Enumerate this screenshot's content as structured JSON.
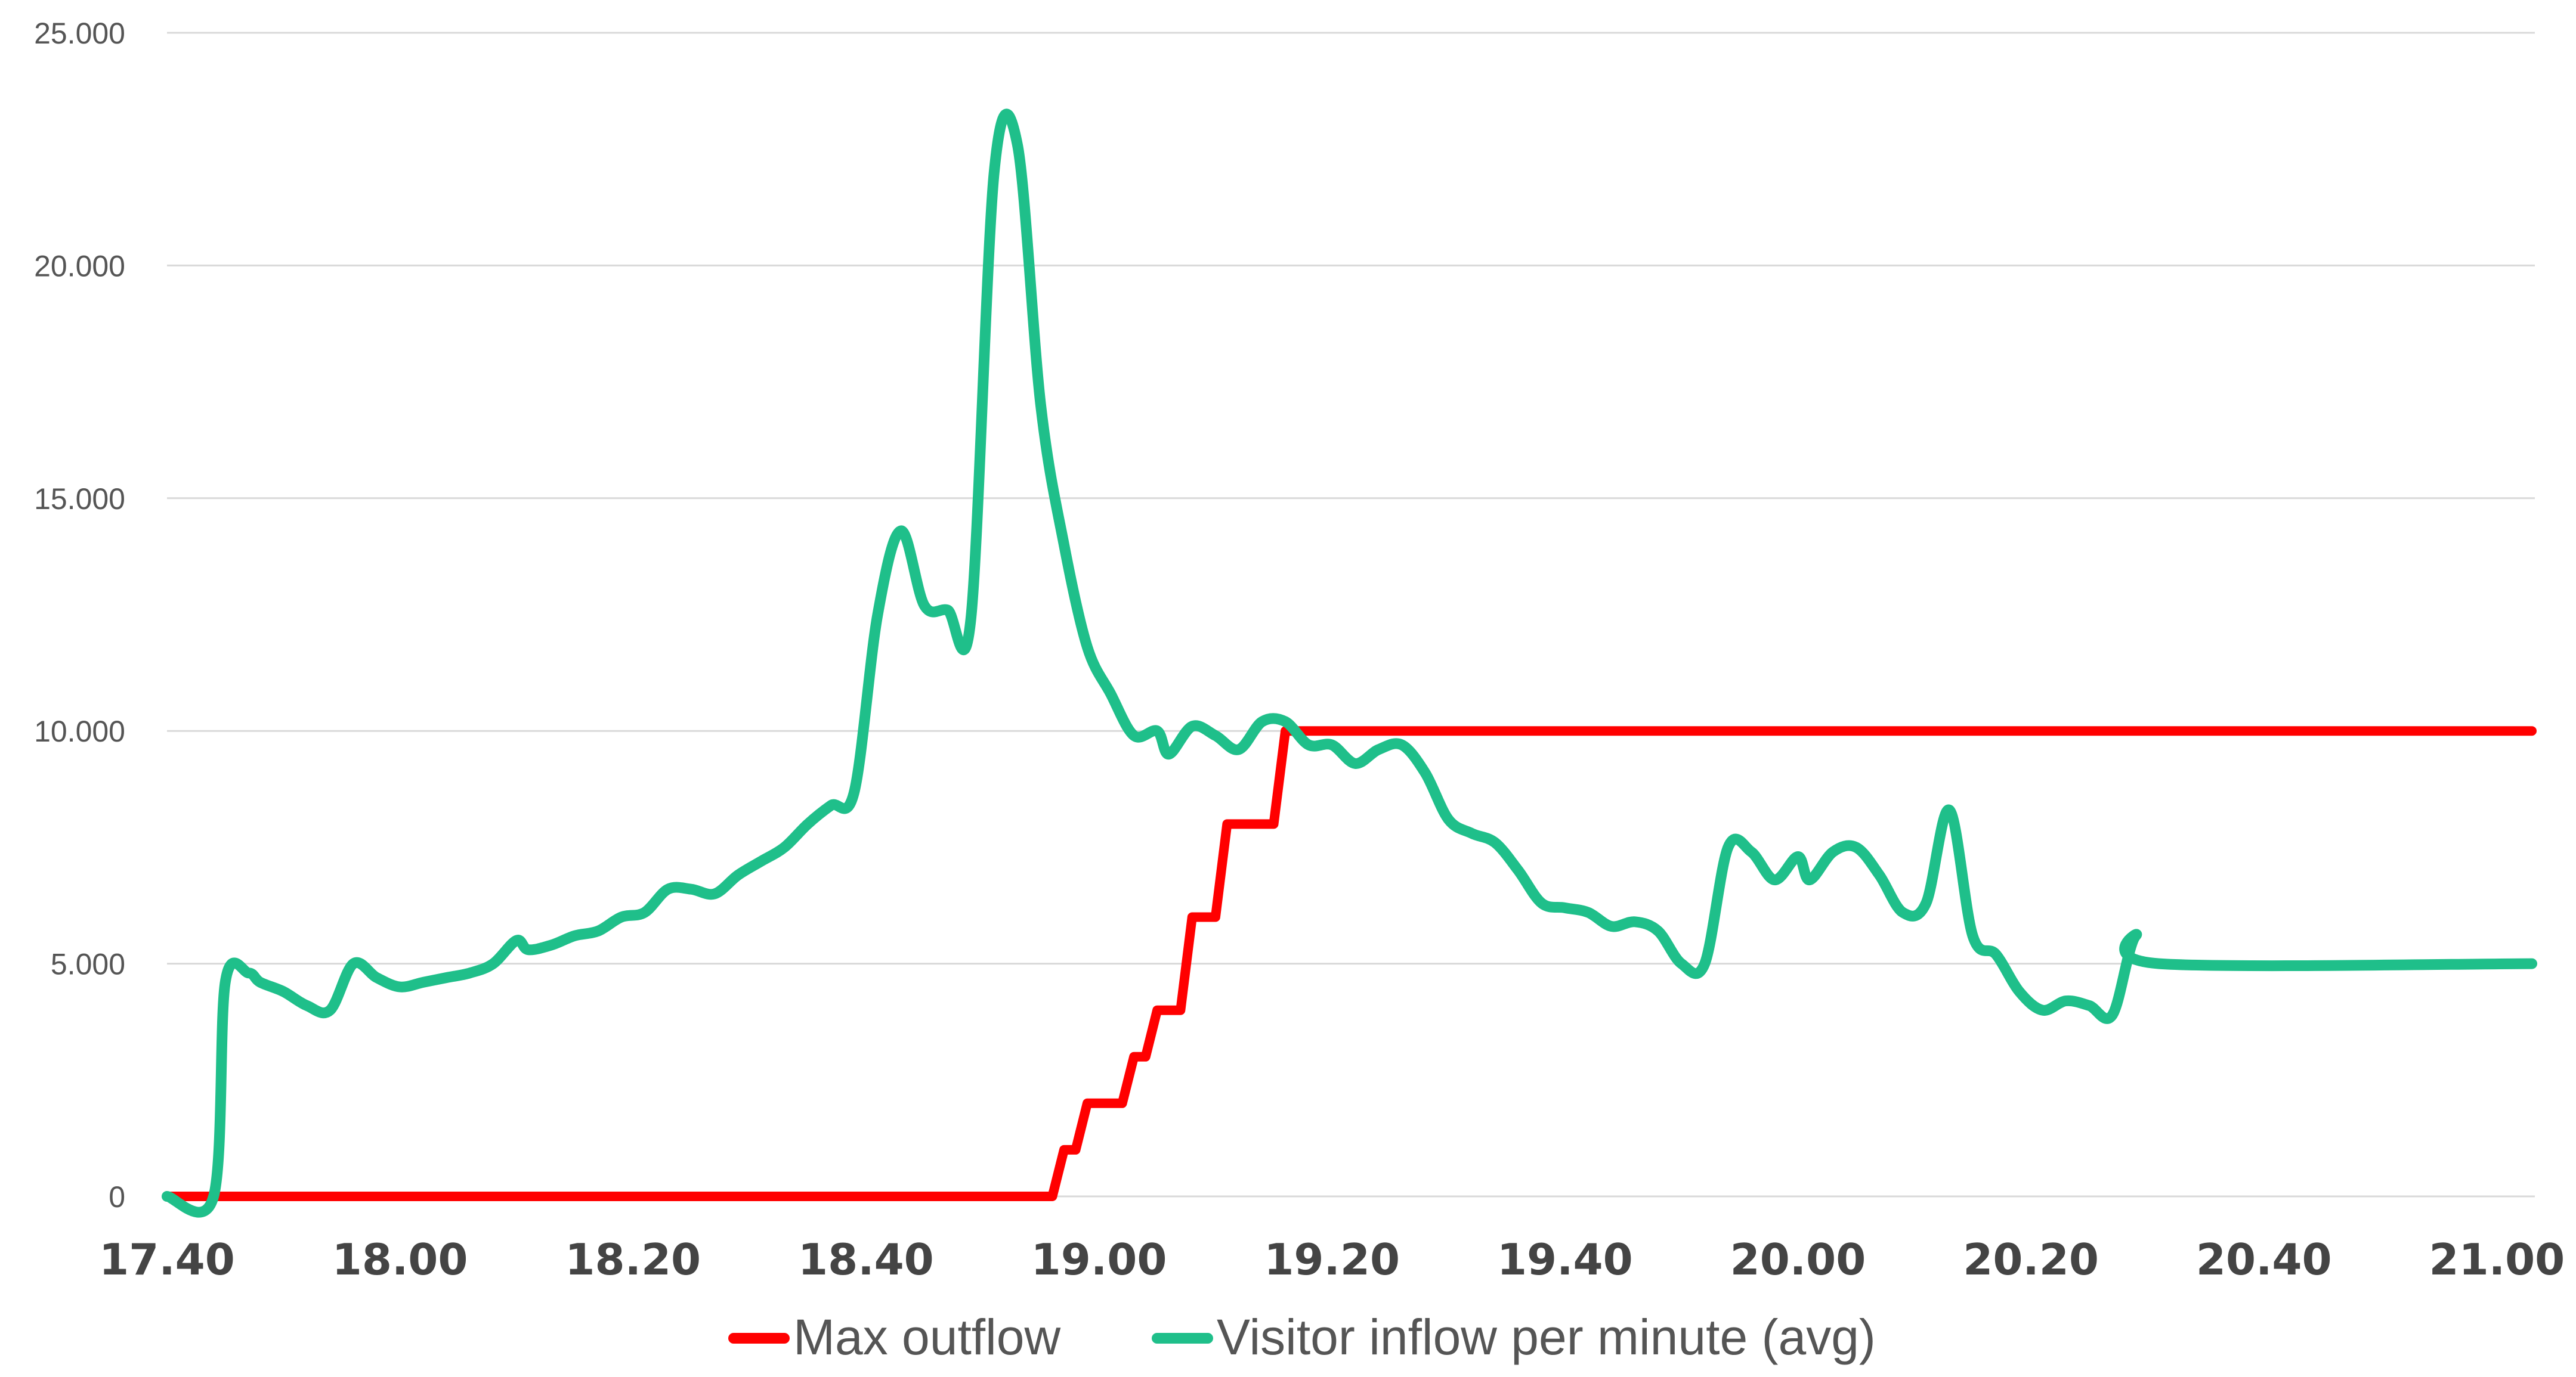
{
  "chart_data": {
    "type": "line",
    "title": "",
    "xlabel": "",
    "ylabel": "",
    "x_ticks": [
      "17.40",
      "18.00",
      "18.20",
      "18.40",
      "19.00",
      "19.20",
      "19.40",
      "20.00",
      "20.20",
      "20.40",
      "21.00"
    ],
    "y_ticks": [
      "0",
      "5.000",
      "10.000",
      "15.000",
      "20.000",
      "25.000"
    ],
    "ylim": [
      0,
      25000
    ],
    "xlim": [
      "17:40",
      "21:03"
    ],
    "grid": true,
    "legend_position": "bottom",
    "series": [
      {
        "name": "Max outflow",
        "color": "#ff0000",
        "points": [
          [
            "17:40",
            0
          ],
          [
            "18:45",
            0
          ],
          [
            "18:56",
            0
          ],
          [
            "18:57",
            1000
          ],
          [
            "18:58",
            1000
          ],
          [
            "18:59",
            2000
          ],
          [
            "19:02",
            2000
          ],
          [
            "19:03",
            3000
          ],
          [
            "19:04",
            3000
          ],
          [
            "19:05",
            4000
          ],
          [
            "19:07",
            4000
          ],
          [
            "19:08",
            6000
          ],
          [
            "19:10",
            6000
          ],
          [
            "19:11",
            8000
          ],
          [
            "19:15",
            8000
          ],
          [
            "19:16",
            10000
          ],
          [
            "21:03",
            10000
          ]
        ]
      },
      {
        "name": "Visitor inflow per minute (avg)",
        "color": "#1fbf8a",
        "points": [
          [
            "17:40",
            0
          ],
          [
            "17:44",
            0
          ],
          [
            "17:45",
            4600
          ],
          [
            "17:47",
            4800
          ],
          [
            "17:48",
            4600
          ],
          [
            "17:50",
            4400
          ],
          [
            "17:52",
            4100
          ],
          [
            "17:54",
            4000
          ],
          [
            "17:56",
            5000
          ],
          [
            "17:58",
            4700
          ],
          [
            "18:00",
            4500
          ],
          [
            "18:02",
            4600
          ],
          [
            "18:04",
            4700
          ],
          [
            "18:06",
            4800
          ],
          [
            "18:08",
            5000
          ],
          [
            "18:10",
            5500
          ],
          [
            "18:11",
            5300
          ],
          [
            "18:13",
            5400
          ],
          [
            "18:15",
            5600
          ],
          [
            "18:17",
            5700
          ],
          [
            "18:19",
            6000
          ],
          [
            "18:21",
            6100
          ],
          [
            "18:23",
            6600
          ],
          [
            "18:25",
            6600
          ],
          [
            "18:27",
            6500
          ],
          [
            "18:29",
            6900
          ],
          [
            "18:31",
            7200
          ],
          [
            "18:33",
            7500
          ],
          [
            "18:35",
            8000
          ],
          [
            "18:37",
            8400
          ],
          [
            "18:39",
            8700
          ],
          [
            "18:41",
            12500
          ],
          [
            "18:43",
            14300
          ],
          [
            "18:45",
            12700
          ],
          [
            "18:47",
            12600
          ],
          [
            "18:49",
            12400
          ],
          [
            "18:51",
            22000
          ],
          [
            "18:53",
            22600
          ],
          [
            "18:55",
            17000
          ],
          [
            "18:57",
            14000
          ],
          [
            "18:59",
            11800
          ],
          [
            "19:01",
            10800
          ],
          [
            "19:03",
            9900
          ],
          [
            "19:05",
            10000
          ],
          [
            "19:06",
            9500
          ],
          [
            "19:08",
            10100
          ],
          [
            "19:10",
            9900
          ],
          [
            "19:12",
            9600
          ],
          [
            "19:14",
            10200
          ],
          [
            "19:16",
            10200
          ],
          [
            "19:18",
            9700
          ],
          [
            "19:20",
            9700
          ],
          [
            "19:22",
            9300
          ],
          [
            "19:24",
            9600
          ],
          [
            "19:26",
            9700
          ],
          [
            "19:28",
            9100
          ],
          [
            "19:30",
            8100
          ],
          [
            "19:32",
            7800
          ],
          [
            "19:34",
            7600
          ],
          [
            "19:36",
            7000
          ],
          [
            "19:38",
            6300
          ],
          [
            "19:40",
            6200
          ],
          [
            "19:42",
            6100
          ],
          [
            "19:44",
            5800
          ],
          [
            "19:46",
            5900
          ],
          [
            "19:48",
            5700
          ],
          [
            "19:50",
            5000
          ],
          [
            "19:52",
            5000
          ],
          [
            "19:54",
            7500
          ],
          [
            "19:56",
            7400
          ],
          [
            "19:58",
            6800
          ],
          [
            "20:00",
            7300
          ],
          [
            "20:01",
            6800
          ],
          [
            "20:03",
            7400
          ],
          [
            "20:05",
            7500
          ],
          [
            "20:07",
            6900
          ],
          [
            "20:09",
            6100
          ],
          [
            "20:11",
            6300
          ],
          [
            "20:13",
            8300
          ],
          [
            "20:15",
            5600
          ],
          [
            "20:17",
            5200
          ],
          [
            "20:19",
            4400
          ],
          [
            "20:21",
            4000
          ],
          [
            "20:23",
            4200
          ],
          [
            "20:25",
            4100
          ],
          [
            "20:27",
            3900
          ],
          [
            "20:29",
            5600
          ],
          [
            "20:31",
            5000
          ],
          [
            "21:03",
            5000
          ]
        ]
      }
    ]
  },
  "legend": [
    {
      "label": "Max outflow",
      "color": "#ff0000"
    },
    {
      "label": "Visitor inflow per minute (avg)",
      "color": "#1fbf8a"
    }
  ]
}
